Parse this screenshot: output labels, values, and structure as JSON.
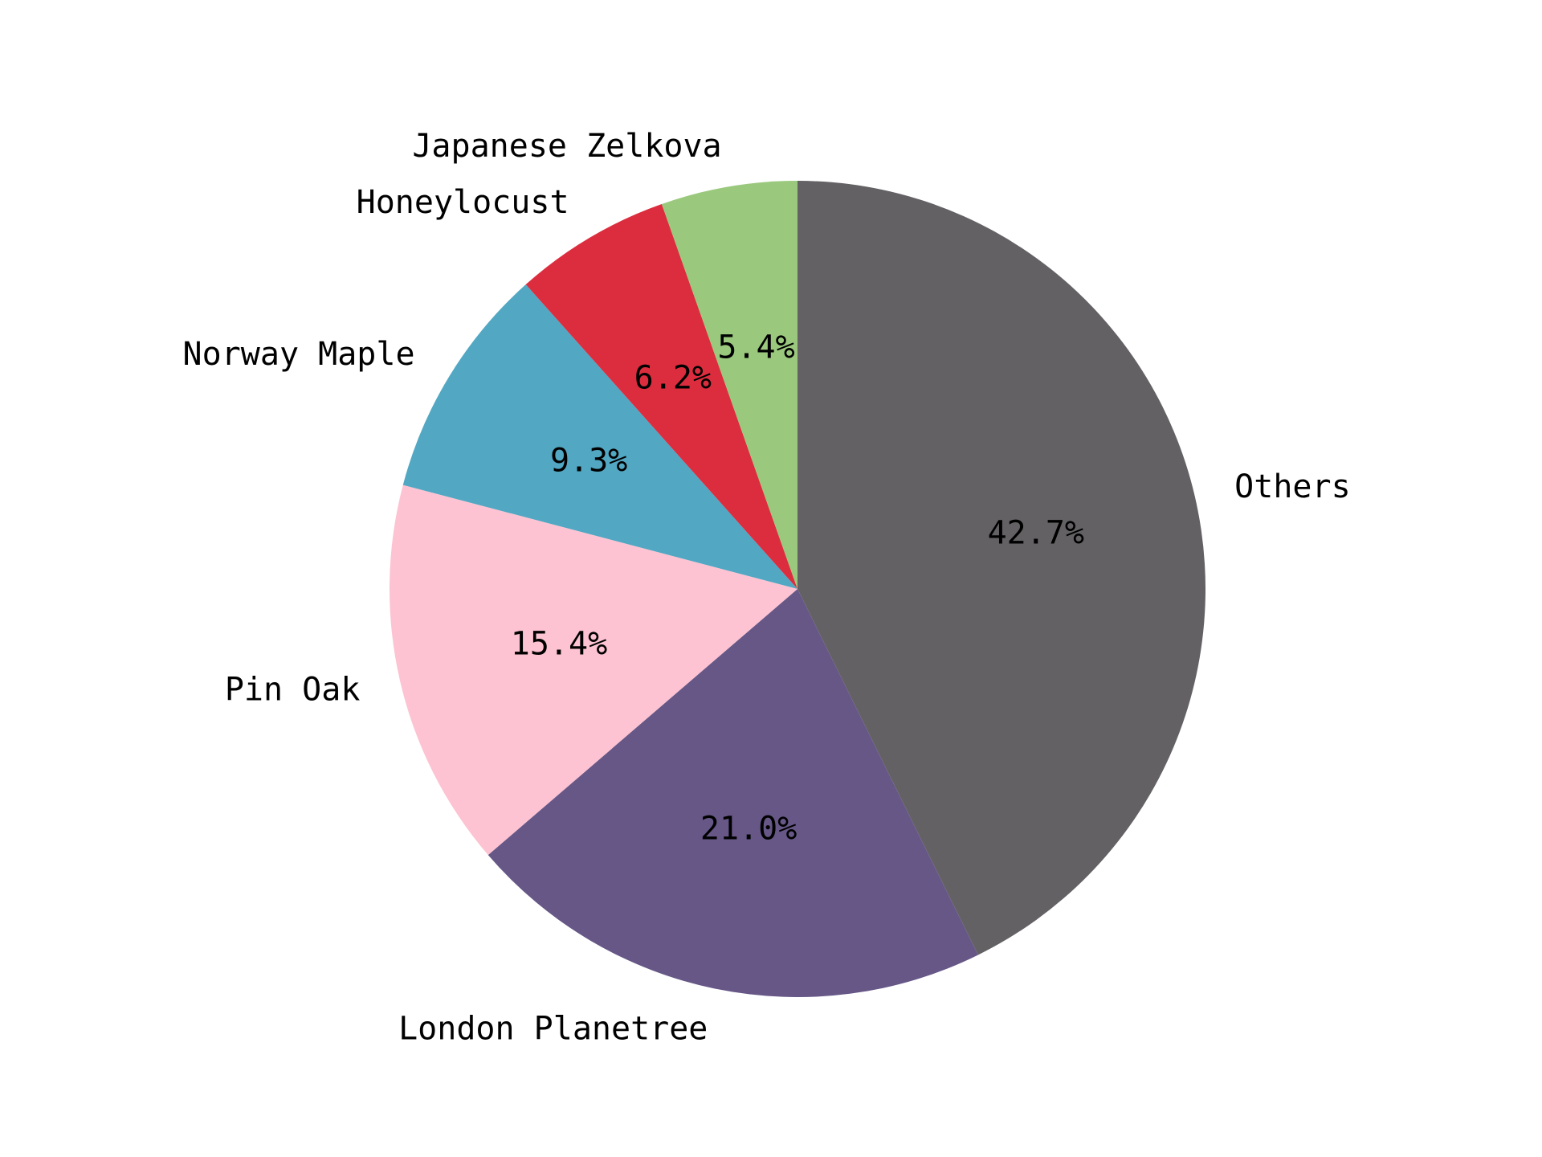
{
  "chart_data": {
    "type": "pie",
    "title": "",
    "categories": [
      "Others",
      "London Planetree",
      "Pin Oak",
      "Norway Maple",
      "Honeylocust",
      "Japanese Zelkova"
    ],
    "values": [
      42.7,
      21.0,
      15.4,
      9.3,
      6.2,
      5.4
    ],
    "percent_labels": [
      "42.7%",
      "21.0%",
      "15.4%",
      "9.3%",
      "6.2%",
      "5.4%"
    ],
    "colors": [
      "#636164",
      "#665787",
      "#fdc3d2",
      "#52a7c3",
      "#dc2d3e",
      "#9ac97d"
    ],
    "start_angle_deg": 90,
    "direction": "clockwise"
  }
}
